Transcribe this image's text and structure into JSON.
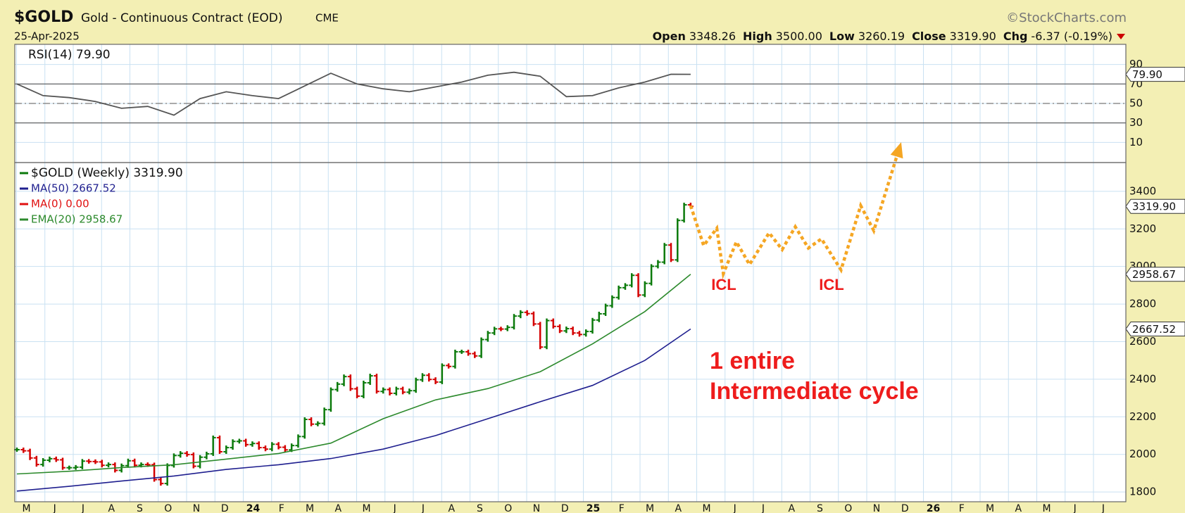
{
  "header": {
    "symbol": "$GOLD",
    "name": "Gold - Continuous Contract (EOD)",
    "exchange": "CME",
    "date": "25-Apr-2025",
    "source": "©StockCharts.com",
    "quote": [
      {
        "label": "Open",
        "value": "3348.26"
      },
      {
        "label": "High",
        "value": "3500.00"
      },
      {
        "label": "Low",
        "value": "3260.19"
      },
      {
        "label": "Close",
        "value": "3319.90"
      },
      {
        "label": "Chg",
        "value": "-6.37 (-0.19%)"
      }
    ]
  },
  "chart_data": [
    {
      "type": "line",
      "label": "RSI(14) 79.90",
      "ylim": [
        -10.7,
        110.7
      ],
      "yticks": [
        10,
        30,
        50,
        70,
        90
      ],
      "x": [
        0,
        4,
        8,
        12,
        16,
        20,
        24,
        28,
        32,
        36,
        40,
        44,
        48,
        52,
        56,
        60,
        64,
        68,
        72,
        76,
        80,
        84,
        88,
        92,
        96,
        100,
        103
      ],
      "series": [
        {
          "color": "#555555",
          "values": [
            70,
            58,
            56,
            52,
            45,
            47,
            38,
            55,
            62,
            58,
            55,
            68,
            81,
            70,
            65,
            62,
            67,
            72,
            79,
            82,
            78,
            57,
            58,
            66,
            72,
            80,
            79.9
          ]
        }
      ],
      "last_label": {
        "value": 79.9,
        "label": "79.90"
      }
    },
    {
      "type": "price",
      "ylim": [
        1748,
        3553
      ],
      "yticks": [
        1800,
        2000,
        2200,
        2400,
        2600,
        2800,
        3000,
        3200,
        3400
      ],
      "x_labels": [
        "M",
        "J",
        "J",
        "A",
        "S",
        "O",
        "N",
        "D",
        "24",
        "F",
        "M",
        "A",
        "M",
        "J",
        "J",
        "A",
        "S",
        "O",
        "N",
        "D",
        "25",
        "F",
        "M",
        "A",
        "M",
        "J",
        "J",
        "A",
        "S",
        "O",
        "N",
        "D",
        "26",
        "F",
        "M",
        "A",
        "M",
        "J",
        "J"
      ],
      "series": [
        {
          "name": "$GOLD (Weekly) 3319.90",
          "up_color": "#0b7a0b",
          "down_color": "#d40000",
          "values": [
            2025,
            2019,
            1981,
            1946,
            1969,
            1977,
            1971,
            1929,
            1929,
            1932,
            1964,
            1962,
            1960,
            1942,
            1946,
            1915,
            1940,
            1966,
            1942,
            1946,
            1945,
            1866,
            1845,
            1941,
            1994,
            2006,
            1999,
            1937,
            1985,
            2003,
            2089,
            2014,
            2036,
            2069,
            2072,
            2052,
            2058,
            2036,
            2028,
            2054,
            2038,
            2024,
            2047,
            2095,
            2186,
            2161,
            2165,
            2238,
            2345,
            2374,
            2414,
            2349,
            2310,
            2381,
            2418,
            2335,
            2345,
            2325,
            2349,
            2331,
            2339,
            2397,
            2421,
            2399,
            2385,
            2473,
            2468,
            2546,
            2546,
            2536,
            2524,
            2611,
            2646,
            2668,
            2667,
            2676,
            2736,
            2756,
            2749,
            2694,
            2571,
            2712,
            2681,
            2657,
            2669,
            2646,
            2638,
            2654,
            2715,
            2748,
            2791,
            2835,
            2887,
            2900,
            2953,
            2848,
            2910,
            3001,
            3023,
            3114,
            3035,
            3245,
            3328,
            3319.9
          ]
        },
        {
          "name": "MA(50) 2667.52",
          "color": "#1f1f8f",
          "x": [
            0,
            8,
            16,
            24,
            32,
            40,
            48,
            56,
            64,
            72,
            80,
            88,
            96,
            103
          ],
          "values": [
            1805,
            1830,
            1858,
            1885,
            1920,
            1945,
            1978,
            2028,
            2100,
            2190,
            2280,
            2367,
            2500,
            2667.52
          ]
        },
        {
          "name": "MA(0) 0.00",
          "color": "#e01010",
          "x": [],
          "values": []
        },
        {
          "name": "EMA(20) 2958.67",
          "color": "#2d8a2d",
          "x": [
            0,
            8,
            16,
            24,
            32,
            40,
            48,
            56,
            64,
            72,
            80,
            88,
            96,
            103
          ],
          "values": [
            1896,
            1910,
            1930,
            1945,
            1975,
            2005,
            2060,
            2190,
            2290,
            2350,
            2440,
            2588,
            2760,
            2958.67
          ]
        }
      ],
      "projection": {
        "color": "#f5a623",
        "x": [
          103,
          105,
          107,
          108,
          110,
          112,
          115,
          117,
          119,
          121,
          123,
          126,
          129,
          131,
          135
        ],
        "values": [
          3324,
          3111,
          3203,
          2962,
          3131,
          3010,
          3179,
          3090,
          3211,
          3098,
          3147,
          2982,
          3324,
          3191,
          3640
        ]
      },
      "last_labels": [
        {
          "value": 3319.9,
          "label": "3319.90"
        },
        {
          "value": 2958.67,
          "label": "2958.67"
        },
        {
          "value": 2667.52,
          "label": "2667.52"
        }
      ],
      "annotations": [
        "ICL",
        "ICL",
        "1 entire",
        "Intermediate cycle"
      ]
    }
  ]
}
